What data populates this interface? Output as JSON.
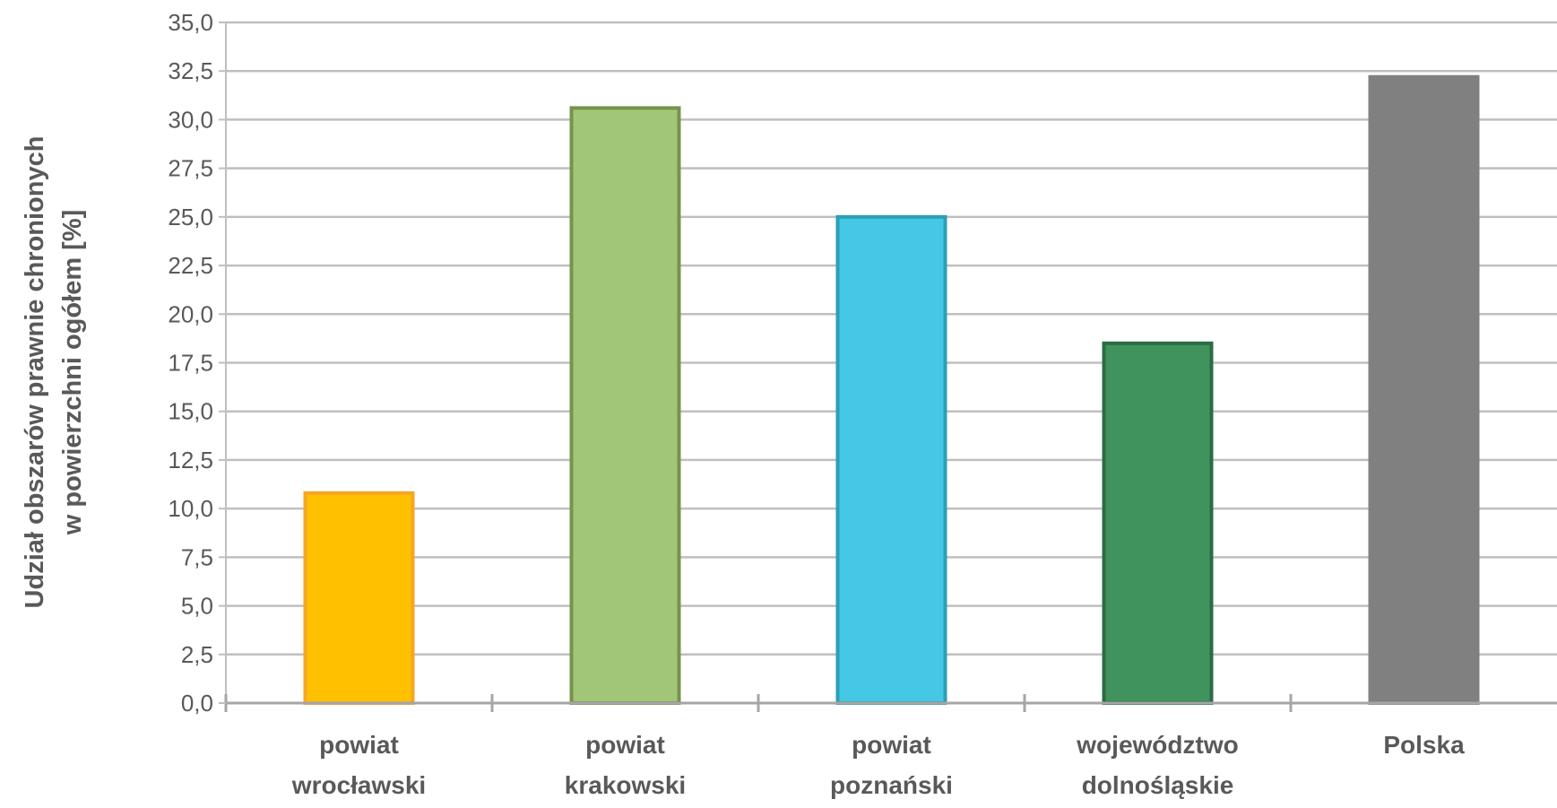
{
  "chart_data": {
    "type": "bar",
    "title": "",
    "xlabel": "",
    "ylabel_lines": [
      "Udział obszarów prawnie chronionych",
      "w powierzchni ogółem [%]"
    ],
    "ylim": [
      0,
      35
    ],
    "ytick_step": 2.5,
    "ytick_labels": [
      "0,0",
      "2,5",
      "5,0",
      "7,5",
      "10,0",
      "12,5",
      "15,0",
      "17,5",
      "20,0",
      "22,5",
      "25,0",
      "27,5",
      "30,0",
      "32,5",
      "35,0"
    ],
    "grid": true,
    "legend": "none",
    "categories": [
      [
        "powiat",
        "wrocławski"
      ],
      [
        "powiat",
        "krakowski"
      ],
      [
        "powiat",
        "poznański"
      ],
      [
        "województwo",
        "dolnośląskie"
      ],
      [
        "Polska"
      ]
    ],
    "values": [
      10.8,
      30.6,
      25.0,
      18.5,
      32.2
    ],
    "colors": {
      "fill": [
        "#FFC000",
        "#A2C678",
        "#44C8E5",
        "#40935D",
        "#808080"
      ],
      "stroke": [
        "#F5A623",
        "#77934C",
        "#2D9FB5",
        "#2C6B45",
        "#808080"
      ]
    }
  }
}
